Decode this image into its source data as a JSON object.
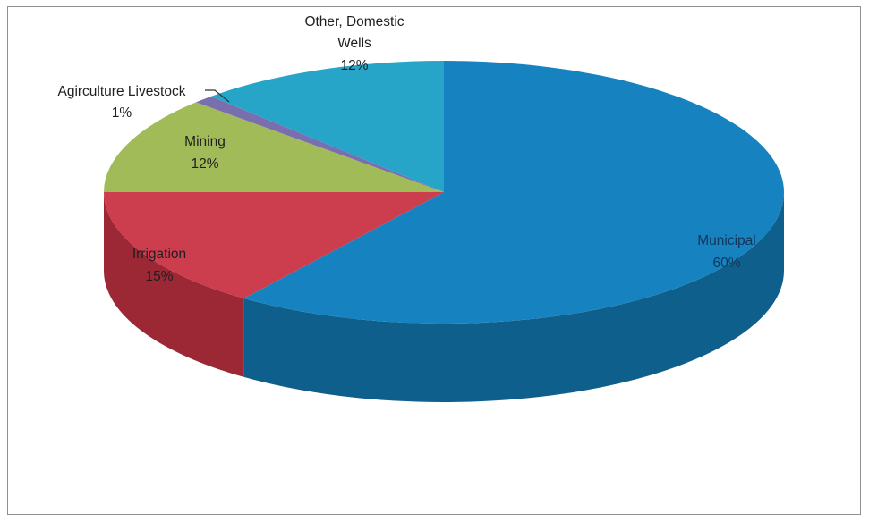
{
  "chart_data": {
    "type": "pie",
    "title": "",
    "three_d": true,
    "legend": "none",
    "slices": [
      {
        "label": "Municipal",
        "value": 60,
        "value_label": "60%",
        "color": "#1683c0",
        "side_color": "#0f5f8c"
      },
      {
        "label": "Irrigation",
        "value": 15,
        "value_label": "15%",
        "color": "#cc3d4d",
        "side_color": "#9b2834"
      },
      {
        "label": "Mining",
        "value": 12,
        "value_label": "12%",
        "color": "#a2bb59",
        "side_color": "#7a8f3c"
      },
      {
        "label": "Agirculture Livestock",
        "value": 1,
        "value_label": "1%",
        "color": "#7a6fae",
        "side_color": "#5a5186"
      },
      {
        "label_lines": [
          "Other, Domestic",
          "Wells"
        ],
        "label": "Other, Domestic Wells",
        "value": 12,
        "value_label": "12%",
        "color": "#27a5c9",
        "side_color": "#1a7f9c"
      }
    ]
  }
}
